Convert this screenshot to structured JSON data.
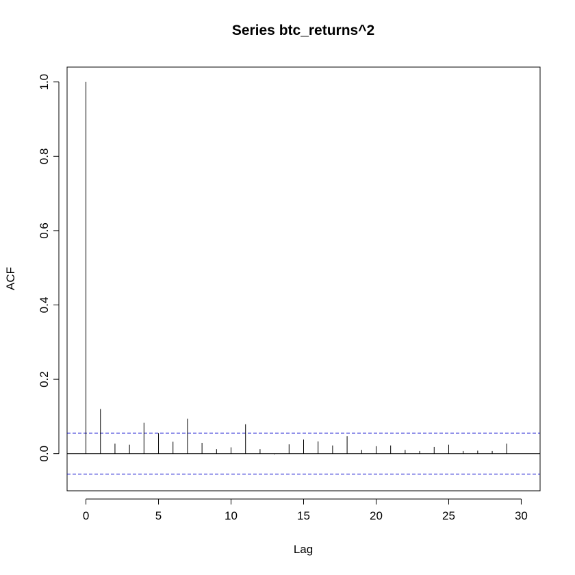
{
  "chart_data": {
    "type": "bar",
    "title": "Series  btc_returns^2",
    "xlabel": "Lag",
    "ylabel": "ACF",
    "xlim": [
      -1.3,
      31.3
    ],
    "ylim": [
      -0.1,
      1.04
    ],
    "x_ticks": [
      0,
      5,
      10,
      15,
      20,
      25,
      30
    ],
    "y_ticks": [
      0.0,
      0.2,
      0.4,
      0.6,
      0.8,
      1.0
    ],
    "x_tick_labels": [
      "0",
      "5",
      "10",
      "15",
      "20",
      "25",
      "30"
    ],
    "y_tick_labels": [
      "0.0",
      "0.2",
      "0.4",
      "0.6",
      "0.8",
      "1.0"
    ],
    "lags": [
      0,
      1,
      2,
      3,
      4,
      5,
      6,
      7,
      8,
      9,
      10,
      11,
      12,
      13,
      14,
      15,
      16,
      17,
      18,
      19,
      20,
      21,
      22,
      23,
      24,
      25,
      26,
      27,
      28,
      29
    ],
    "acf": [
      1.0,
      0.12,
      0.027,
      0.024,
      0.083,
      0.055,
      0.032,
      0.094,
      0.029,
      0.012,
      0.017,
      0.079,
      0.012,
      -0.002,
      0.025,
      0.038,
      0.033,
      0.022,
      0.047,
      0.01,
      0.02,
      0.022,
      0.01,
      0.007,
      0.018,
      0.024,
      0.007,
      0.008,
      0.007,
      0.027
    ],
    "confidence_bound": 0.055,
    "confidence_line_color": "#0000cc",
    "bar_color": "#000000",
    "grid": false
  }
}
